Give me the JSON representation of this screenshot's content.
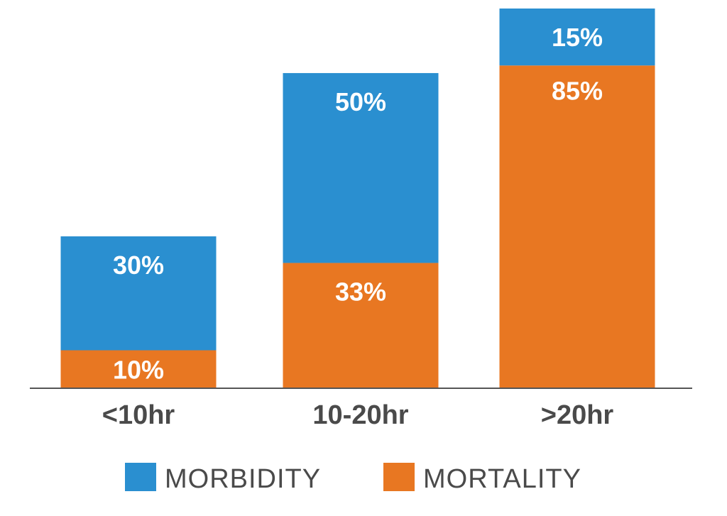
{
  "chart_data": {
    "type": "bar",
    "stacked": true,
    "categories": [
      "<10hr",
      "10-20hr",
      ">20hr"
    ],
    "series": [
      {
        "name": "MORTALITY",
        "color": "#e87722",
        "values": [
          10,
          33,
          85
        ],
        "labels": [
          "10%",
          "33%",
          "85%"
        ]
      },
      {
        "name": "MORBIDITY",
        "color": "#2a8fd0",
        "values": [
          30,
          50,
          15
        ],
        "labels": [
          "30%",
          "50%",
          "15%"
        ]
      }
    ],
    "legend": {
      "placement": "bottom",
      "order": [
        "MORBIDITY",
        "MORTALITY"
      ]
    },
    "ylim": [
      0,
      100
    ],
    "grid": false,
    "title": "",
    "xlabel": "",
    "ylabel": ""
  }
}
